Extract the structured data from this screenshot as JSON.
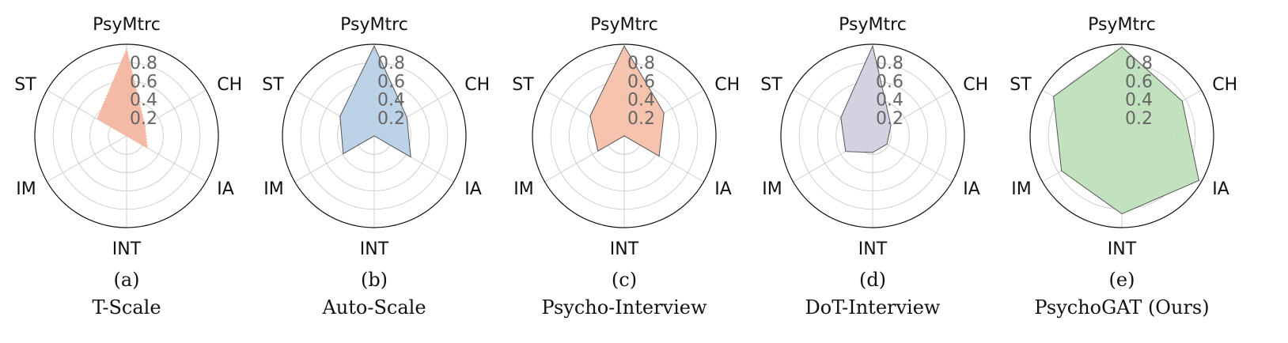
{
  "chart_data": [
    {
      "type": "radar",
      "label": "(a)",
      "caption": "T-Scale",
      "axes": [
        "PsyMtrc",
        "CH",
        "IA",
        "INT",
        "IM",
        "ST"
      ],
      "values": [
        0.95,
        0.23,
        0.26,
        0.0,
        0.0,
        0.37
      ],
      "color": "#f4b6a0",
      "edge_color": "#f4b6a0",
      "dashed_edge": true,
      "rticks": [
        "0.2",
        "0.4",
        "0.6",
        "0.8"
      ],
      "rlim": [
        0,
        1
      ],
      "grid": true
    },
    {
      "type": "radar",
      "label": "(b)",
      "caption": "Auto-Scale",
      "axes": [
        "PsyMtrc",
        "CH",
        "IA",
        "INT",
        "IM",
        "ST"
      ],
      "values": [
        0.98,
        0.41,
        0.46,
        0.0,
        0.39,
        0.43
      ],
      "color": "#b7d0e6",
      "edge_color": "#555555",
      "dashed_edge": false,
      "rticks": [
        "0.2",
        "0.4",
        "0.6",
        "0.8"
      ],
      "rlim": [
        0,
        1
      ],
      "grid": true
    },
    {
      "type": "radar",
      "label": "(c)",
      "caption": "Psycho-Interview",
      "axes": [
        "PsyMtrc",
        "CH",
        "IA",
        "INT",
        "IM",
        "ST"
      ],
      "values": [
        0.98,
        0.5,
        0.44,
        0.0,
        0.33,
        0.43
      ],
      "color": "#f6c0aa",
      "edge_color": "#555555",
      "dashed_edge": false,
      "rticks": [
        "0.2",
        "0.4",
        "0.6",
        "0.8"
      ],
      "rlim": [
        0,
        1
      ],
      "grid": true
    },
    {
      "type": "radar",
      "label": "(d)",
      "caption": "DoT-Interview",
      "axes": [
        "PsyMtrc",
        "CH",
        "IA",
        "INT",
        "IM",
        "ST"
      ],
      "values": [
        0.98,
        0.23,
        0.18,
        0.18,
        0.34,
        0.4
      ],
      "color": "#d3cfde",
      "edge_color": "#555555",
      "dashed_edge": false,
      "rticks": [
        "0.2",
        "0.4",
        "0.6",
        "0.8"
      ],
      "rlim": [
        0,
        1
      ],
      "grid": true
    },
    {
      "type": "radar",
      "label": "(e)",
      "caption": "PsychoGAT (Ours)",
      "axes": [
        "PsyMtrc",
        "CH",
        "IA",
        "INT",
        "IM",
        "ST"
      ],
      "values": [
        0.97,
        0.76,
        0.97,
        0.85,
        0.76,
        0.86
      ],
      "color": "#bfe0bc",
      "edge_color": "#555555",
      "dashed_edge": false,
      "rticks": [
        "0.2",
        "0.4",
        "0.6",
        "0.8"
      ],
      "rlim": [
        0,
        1
      ],
      "grid": true
    }
  ]
}
